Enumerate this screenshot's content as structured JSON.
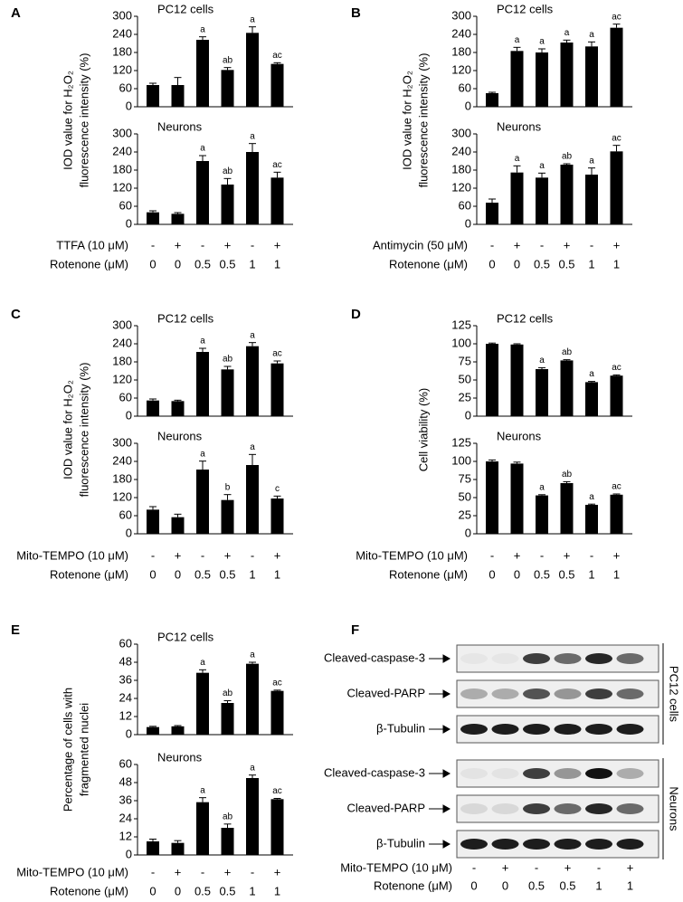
{
  "panels": [
    {
      "letter": "A",
      "ylabel": [
        "IOD value for H₂O₂",
        "fluorescence intensity (%)"
      ],
      "rows": [
        {
          "name": "TTFA (10 μM)",
          "labels": [
            "-",
            "+",
            "-",
            "+",
            "-",
            "+"
          ]
        },
        {
          "name": "Rotenone (μM)",
          "labels": [
            "0",
            "0",
            "0.5",
            "0.5",
            "1",
            "1"
          ]
        }
      ]
    },
    {
      "letter": "B",
      "ylabel": [
        "IOD value for H₂O₂",
        "fluorescence intensity (%)"
      ],
      "rows": [
        {
          "name": "Antimycin (50 μM)",
          "labels": [
            "-",
            "+",
            "-",
            "+",
            "-",
            "+"
          ]
        },
        {
          "name": "Rotenone (μM)",
          "labels": [
            "0",
            "0",
            "0.5",
            "0.5",
            "1",
            "1"
          ]
        }
      ]
    },
    {
      "letter": "C",
      "ylabel": [
        "IOD value for H₂O₂",
        "fluorescence intensity (%)"
      ],
      "rows": [
        {
          "name": "Mito-TEMPO (10 μM)",
          "labels": [
            "-",
            "+",
            "-",
            "+",
            "-",
            "+"
          ]
        },
        {
          "name": "Rotenone (μM)",
          "labels": [
            "0",
            "0",
            "0.5",
            "0.5",
            "1",
            "1"
          ]
        }
      ]
    },
    {
      "letter": "D",
      "ylabel": [
        "Cell viability (%)"
      ],
      "rows": [
        {
          "name": "Mito-TEMPO (10 μM)",
          "labels": [
            "-",
            "+",
            "-",
            "+",
            "-",
            "+"
          ]
        },
        {
          "name": "Rotenone (μM)",
          "labels": [
            "0",
            "0",
            "0.5",
            "0.5",
            "1",
            "1"
          ]
        }
      ]
    },
    {
      "letter": "E",
      "ylabel": [
        "Percentage of cells with",
        "fragmented nuclei"
      ],
      "rows": [
        {
          "name": "Mito-TEMPO (10 μM)",
          "labels": [
            "-",
            "+",
            "-",
            "+",
            "-",
            "+"
          ]
        },
        {
          "name": "Rotenone (μM)",
          "labels": [
            "0",
            "0",
            "0.5",
            "0.5",
            "1",
            "1"
          ]
        }
      ]
    }
  ],
  "chart_data": [
    {
      "type": "bar",
      "title": "PC12 cells",
      "color": "#000000",
      "ylim": [
        0,
        300
      ],
      "yticks": [
        0,
        60,
        120,
        180,
        240,
        300
      ],
      "values": [
        72,
        72,
        222,
        122,
        245,
        142
      ],
      "errors": [
        6,
        25,
        10,
        8,
        20,
        4
      ],
      "annotations": [
        null,
        null,
        "a",
        "ab",
        "a",
        "ac"
      ]
    },
    {
      "type": "bar",
      "title": "Neurons",
      "color": "#000000",
      "ylim": [
        0,
        300
      ],
      "yticks": [
        0,
        60,
        120,
        180,
        240,
        300
      ],
      "values": [
        40,
        35,
        210,
        132,
        240,
        155
      ],
      "errors": [
        5,
        4,
        18,
        20,
        28,
        18
      ],
      "annotations": [
        null,
        null,
        "a",
        "ab",
        "a",
        "ac"
      ]
    },
    {
      "type": "bar",
      "title": "PC12 cells",
      "color": "#000000",
      "ylim": [
        0,
        300
      ],
      "yticks": [
        0,
        60,
        120,
        180,
        240,
        300
      ],
      "values": [
        45,
        185,
        180,
        213,
        200,
        262
      ],
      "errors": [
        3,
        12,
        12,
        8,
        15,
        12
      ],
      "annotations": [
        null,
        "a",
        "a",
        "a",
        "a",
        "ac"
      ]
    },
    {
      "type": "bar",
      "title": "Neurons",
      "color": "#000000",
      "ylim": [
        0,
        300
      ],
      "yticks": [
        0,
        60,
        120,
        180,
        240,
        300
      ],
      "values": [
        72,
        172,
        155,
        198,
        165,
        242
      ],
      "errors": [
        12,
        22,
        15,
        3,
        22,
        20
      ],
      "annotations": [
        null,
        "a",
        "a",
        "ab",
        "a",
        "ac"
      ]
    },
    {
      "type": "bar",
      "title": "PC12 cells",
      "color": "#000000",
      "ylim": [
        0,
        300
      ],
      "yticks": [
        0,
        60,
        120,
        180,
        240,
        300
      ],
      "values": [
        52,
        50,
        213,
        155,
        232,
        175
      ],
      "errors": [
        5,
        3,
        12,
        10,
        12,
        8
      ],
      "annotations": [
        null,
        null,
        "a",
        "ab",
        "a",
        "ac"
      ]
    },
    {
      "type": "bar",
      "title": "Neurons",
      "color": "#000000",
      "ylim": [
        0,
        300
      ],
      "yticks": [
        0,
        60,
        120,
        180,
        240,
        300
      ],
      "values": [
        80,
        55,
        213,
        112,
        228,
        117
      ],
      "errors": [
        10,
        10,
        28,
        18,
        35,
        8
      ],
      "annotations": [
        null,
        null,
        "a",
        "b",
        "a",
        "c"
      ]
    },
    {
      "type": "bar",
      "title": "PC12 cells",
      "color": "#000000",
      "ylim": [
        0,
        125
      ],
      "yticks": [
        0,
        25,
        50,
        75,
        100,
        125
      ],
      "values": [
        100,
        99,
        65,
        77,
        47,
        56
      ],
      "errors": [
        1,
        1,
        2,
        1,
        1,
        1
      ],
      "annotations": [
        null,
        null,
        "a",
        "ab",
        "a",
        "ac"
      ]
    },
    {
      "type": "bar",
      "title": "Neurons",
      "color": "#000000",
      "ylim": [
        0,
        125
      ],
      "yticks": [
        0,
        25,
        50,
        75,
        100,
        125
      ],
      "values": [
        100,
        97,
        53,
        70,
        40,
        54
      ],
      "errors": [
        2,
        2,
        1,
        2,
        1,
        1
      ],
      "annotations": [
        null,
        null,
        "a",
        "ab",
        "a",
        "ac"
      ]
    },
    {
      "type": "bar",
      "title": "PC12 cells",
      "color": "#000000",
      "ylim": [
        0,
        60
      ],
      "yticks": [
        0,
        12,
        24,
        36,
        48,
        60
      ],
      "values": [
        5,
        5.5,
        41,
        21,
        47,
        29
      ],
      "errors": [
        0.5,
        0.5,
        2,
        1.5,
        1,
        0.5
      ],
      "annotations": [
        null,
        null,
        "a",
        "ab",
        "a",
        "ac"
      ]
    },
    {
      "type": "bar",
      "title": "Neurons",
      "color": "#000000",
      "ylim": [
        0,
        60
      ],
      "yticks": [
        0,
        12,
        24,
        36,
        48,
        60
      ],
      "values": [
        9,
        8,
        35,
        18,
        51,
        37
      ],
      "errors": [
        1.5,
        1.5,
        3,
        2.5,
        2,
        0.5
      ],
      "annotations": [
        null,
        null,
        "a",
        "ab",
        "a",
        "ac"
      ]
    }
  ],
  "blot": {
    "letter": "F",
    "groups": [
      {
        "name": "PC12 cells",
        "rows": [
          "Cleaved-caspase-3",
          "Cleaved-PARP",
          "β-Tubulin"
        ]
      },
      {
        "name": "Neurons",
        "rows": [
          "Cleaved-caspase-3",
          "Cleaved-PARP",
          "β-Tubulin"
        ]
      }
    ],
    "rows": [
      {
        "name": "Mito-TEMPO (10 μM)",
        "labels": [
          "-",
          "+",
          "-",
          "+",
          "-",
          "+"
        ]
      },
      {
        "name": "Rotenone (μM)",
        "labels": [
          "0",
          "0",
          "0.5",
          "0.5",
          "1",
          "1"
        ]
      }
    ]
  }
}
